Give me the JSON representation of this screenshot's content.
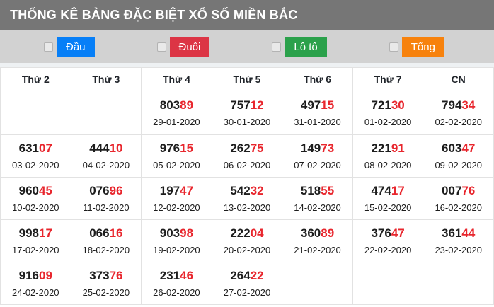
{
  "title": "THỐNG KÊ BẢNG ĐẶC BIỆT XỔ SỐ MIỀN BẮC",
  "colors": {
    "titlebar_bg": "#767676",
    "filterbar_bg": "#d2d2d2",
    "border": "#e2e2e2",
    "digit_black": "#1d1d1d",
    "digit_red": "#e8262d"
  },
  "filters": [
    {
      "label": "Đầu",
      "color": "#077ff7",
      "checked": false
    },
    {
      "label": "Đuôi",
      "color": "#dc3545",
      "checked": false
    },
    {
      "label": "Lô tô",
      "color": "#2ba14b",
      "checked": false
    },
    {
      "label": "Tổng",
      "color": "#f7820d",
      "checked": false
    }
  ],
  "table": {
    "columns": [
      "Thứ 2",
      "Thứ 3",
      "Thứ 4",
      "Thứ 5",
      "Thứ 6",
      "Thứ 7",
      "CN"
    ],
    "rows": [
      [
        null,
        null,
        {
          "prefix": "803",
          "suffix": "89",
          "date": "29-01-2020"
        },
        {
          "prefix": "757",
          "suffix": "12",
          "date": "30-01-2020"
        },
        {
          "prefix": "497",
          "suffix": "15",
          "date": "31-01-2020"
        },
        {
          "prefix": "721",
          "suffix": "30",
          "date": "01-02-2020"
        },
        {
          "prefix": "794",
          "suffix": "34",
          "date": "02-02-2020"
        }
      ],
      [
        {
          "prefix": "631",
          "suffix": "07",
          "date": "03-02-2020"
        },
        {
          "prefix": "444",
          "suffix": "10",
          "date": "04-02-2020"
        },
        {
          "prefix": "976",
          "suffix": "15",
          "date": "05-02-2020"
        },
        {
          "prefix": "262",
          "suffix": "75",
          "date": "06-02-2020"
        },
        {
          "prefix": "149",
          "suffix": "73",
          "date": "07-02-2020"
        },
        {
          "prefix": "221",
          "suffix": "91",
          "date": "08-02-2020"
        },
        {
          "prefix": "603",
          "suffix": "47",
          "date": "09-02-2020"
        }
      ],
      [
        {
          "prefix": "960",
          "suffix": "45",
          "date": "10-02-2020"
        },
        {
          "prefix": "076",
          "suffix": "96",
          "date": "11-02-2020"
        },
        {
          "prefix": "197",
          "suffix": "47",
          "date": "12-02-2020"
        },
        {
          "prefix": "542",
          "suffix": "32",
          "date": "13-02-2020"
        },
        {
          "prefix": "518",
          "suffix": "55",
          "date": "14-02-2020"
        },
        {
          "prefix": "474",
          "suffix": "17",
          "date": "15-02-2020"
        },
        {
          "prefix": "007",
          "suffix": "76",
          "date": "16-02-2020"
        }
      ],
      [
        {
          "prefix": "998",
          "suffix": "17",
          "date": "17-02-2020"
        },
        {
          "prefix": "066",
          "suffix": "16",
          "date": "18-02-2020"
        },
        {
          "prefix": "903",
          "suffix": "98",
          "date": "19-02-2020"
        },
        {
          "prefix": "222",
          "suffix": "04",
          "date": "20-02-2020"
        },
        {
          "prefix": "360",
          "suffix": "89",
          "date": "21-02-2020"
        },
        {
          "prefix": "376",
          "suffix": "47",
          "date": "22-02-2020"
        },
        {
          "prefix": "361",
          "suffix": "44",
          "date": "23-02-2020"
        }
      ],
      [
        {
          "prefix": "916",
          "suffix": "09",
          "date": "24-02-2020"
        },
        {
          "prefix": "373",
          "suffix": "76",
          "date": "25-02-2020"
        },
        {
          "prefix": "231",
          "suffix": "46",
          "date": "26-02-2020"
        },
        {
          "prefix": "264",
          "suffix": "22",
          "date": "27-02-2020"
        },
        null,
        null,
        null
      ]
    ]
  }
}
